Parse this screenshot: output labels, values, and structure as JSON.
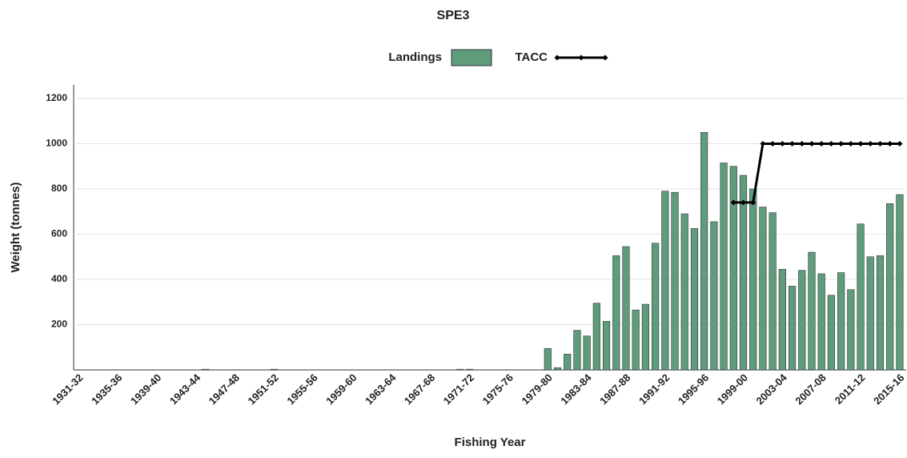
{
  "chart_data": {
    "type": "bar",
    "title": "SPE3",
    "x_label": "Fishing Year",
    "y_label": "Weight (tonnes)",
    "categories": [
      "1931-32",
      null,
      null,
      null,
      "1935-36",
      null,
      null,
      null,
      "1939-40",
      null,
      null,
      null,
      "1943-44",
      null,
      null,
      null,
      "1947-48",
      null,
      null,
      null,
      "1951-52",
      null,
      null,
      null,
      "1955-56",
      null,
      null,
      null,
      "1959-60",
      null,
      null,
      null,
      "1963-64",
      null,
      null,
      null,
      "1967-68",
      null,
      null,
      null,
      "1971-72",
      null,
      null,
      null,
      "1975-76",
      null,
      null,
      null,
      "1979-80",
      null,
      null,
      null,
      "1983-84",
      null,
      null,
      null,
      "1987-88",
      null,
      null,
      null,
      "1991-92",
      null,
      null,
      null,
      "1995-96",
      null,
      null,
      null,
      "1999-00",
      null,
      null,
      null,
      "2003-04",
      null,
      null,
      null,
      "2007-08",
      null,
      null,
      null,
      "2011-12",
      null,
      null,
      null,
      "2015-16"
    ],
    "series": [
      {
        "name": "Landings",
        "type": "bar",
        "color": "#5e9c7c",
        "values": [
          0,
          0,
          0,
          0,
          0,
          0,
          0,
          0,
          0,
          0,
          0,
          0,
          0,
          3,
          0,
          0,
          0,
          0,
          0,
          0,
          3,
          0,
          0,
          0,
          0,
          0,
          0,
          0,
          0,
          0,
          0,
          0,
          0,
          0,
          0,
          0,
          0,
          0,
          0,
          3,
          3,
          0,
          0,
          0,
          0,
          0,
          0,
          0,
          95,
          10,
          70,
          175,
          150,
          295,
          215,
          505,
          545,
          265,
          290,
          560,
          790,
          785,
          690,
          625,
          1050,
          655,
          915,
          900,
          860,
          800,
          720,
          695,
          445,
          370,
          440,
          520,
          425,
          330,
          430,
          355,
          645,
          500,
          505,
          735,
          775
        ]
      },
      {
        "name": "TACC",
        "type": "line",
        "color": "#000000",
        "values": [
          null,
          null,
          null,
          null,
          null,
          null,
          null,
          null,
          null,
          null,
          null,
          null,
          null,
          null,
          null,
          null,
          null,
          null,
          null,
          null,
          null,
          null,
          null,
          null,
          null,
          null,
          null,
          null,
          null,
          null,
          null,
          null,
          null,
          null,
          null,
          null,
          null,
          null,
          null,
          null,
          null,
          null,
          null,
          null,
          null,
          null,
          null,
          null,
          null,
          null,
          null,
          null,
          null,
          null,
          null,
          null,
          null,
          null,
          null,
          null,
          null,
          null,
          null,
          null,
          null,
          null,
          null,
          740,
          740,
          740,
          1000,
          1000,
          1000,
          1000,
          1000,
          1000,
          1000,
          1000,
          1000,
          1000,
          1000,
          1000,
          1000,
          1000,
          1000
        ]
      }
    ],
    "ylim": [
      0,
      1260
    ],
    "yticks": [
      200,
      400,
      600,
      800,
      1000,
      1200
    ],
    "grid": true
  }
}
